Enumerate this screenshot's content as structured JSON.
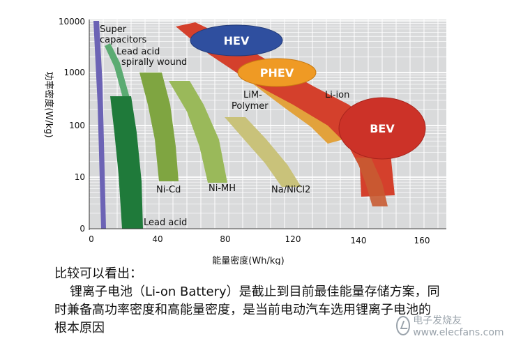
{
  "chart_data": {
    "type": "area",
    "xlabel": "能量密度(Wh/kg)",
    "ylabel": "功率密度(W/kg)",
    "x_ticks": [
      "0",
      "40",
      "80",
      "120",
      "140",
      "160"
    ],
    "y_ticks": [
      "0",
      "10",
      "100",
      "1000",
      "10000"
    ],
    "y_scale": "log",
    "grid": true,
    "regions": [
      {
        "name": "Super capacitors",
        "color": "#6c63b5"
      },
      {
        "name": "Lead acid spirally wound",
        "color": "#5bab72"
      },
      {
        "name": "Lead acid",
        "color": "#1f7a3a"
      },
      {
        "name": "Ni-Cd",
        "color": "#7fa541"
      },
      {
        "name": "Ni-MH",
        "color": "#9ab95a"
      },
      {
        "name": "Na/NiCl2",
        "color": "#c9c27a"
      },
      {
        "name": "LiM-Polymer",
        "color": "#e2a23c"
      },
      {
        "name": "Li-ion",
        "color": "#d4402c"
      }
    ],
    "ellipses": [
      {
        "name": "HEV",
        "color": "#2f4f9f"
      },
      {
        "name": "PHEV",
        "color": "#ef9a24"
      },
      {
        "name": "BEV",
        "color": "#cc3228"
      }
    ],
    "labels": {
      "super_cap_1": "Super",
      "super_cap_2": "capacitors",
      "lead_spiral_1": "Lead acid",
      "lead_spiral_2": "spirally wound",
      "lead_acid": "Lead acid",
      "nicd": "Ni-Cd",
      "nimh": "Ni-MH",
      "nanicl2": "Na/NiCl2",
      "limpoly_1": "LiM-",
      "limpoly_2": "Polymer",
      "liion": "Li-ion",
      "hev": "HEV",
      "phev": "PHEV",
      "bev": "BEV"
    }
  },
  "caption": {
    "heading": "比较可以看出：",
    "line1": "锂离子电池（Li-on Battery）是截止到目前最佳能量存储方案，同",
    "line2": "时兼备高功率密度和高能量密度，是当前电动汽车选用锂离子电池的",
    "line3": "根本原因"
  },
  "watermark": "电子发烧友 www.elecfans.com"
}
